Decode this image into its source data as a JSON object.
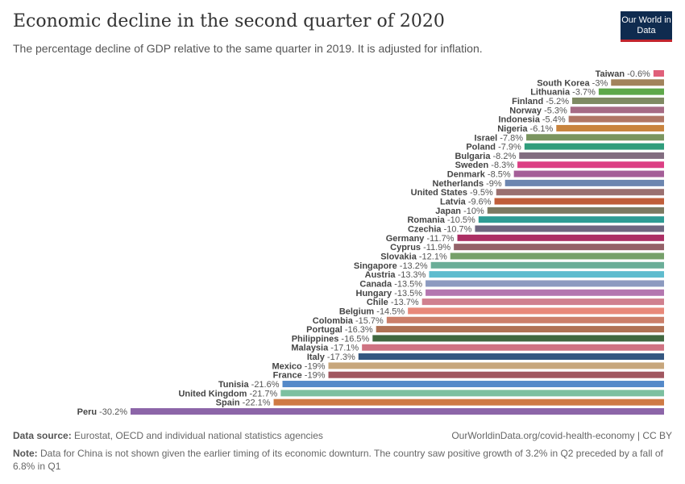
{
  "header": {
    "title": "Economic decline in the second quarter of 2020",
    "subtitle": "The percentage decline of GDP relative to the same quarter in 2019. It is adjusted for inflation.",
    "logo": "Our World in Data"
  },
  "chart_data": {
    "type": "bar",
    "orientation": "horizontal",
    "unit": "%",
    "xlim": [
      -30.2,
      0
    ],
    "grid": false,
    "categories": [
      "Taiwan",
      "South Korea",
      "Lithuania",
      "Finland",
      "Norway",
      "Indonesia",
      "Nigeria",
      "Israel",
      "Poland",
      "Bulgaria",
      "Sweden",
      "Denmark",
      "Netherlands",
      "United States",
      "Latvia",
      "Japan",
      "Romania",
      "Czechia",
      "Germany",
      "Cyprus",
      "Slovakia",
      "Singapore",
      "Austria",
      "Canada",
      "Hungary",
      "Chile",
      "Belgium",
      "Colombia",
      "Portugal",
      "Philippines",
      "Malaysia",
      "Italy",
      "Mexico",
      "France",
      "Tunisia",
      "United Kingdom",
      "Spain",
      "Peru"
    ],
    "values": [
      -0.6,
      -3,
      -3.7,
      -5.2,
      -5.3,
      -5.4,
      -6.1,
      -7.8,
      -7.9,
      -8.2,
      -8.3,
      -8.5,
      -9,
      -9.5,
      -9.6,
      -10,
      -10.5,
      -10.7,
      -11.7,
      -11.9,
      -12.1,
      -13.2,
      -13.3,
      -13.5,
      -13.5,
      -13.7,
      -14.5,
      -15.7,
      -16.3,
      -16.5,
      -17.1,
      -17.3,
      -19,
      -19,
      -21.6,
      -21.7,
      -22.1,
      -30.2
    ],
    "colors": [
      "#e0607a",
      "#a2835c",
      "#5ea84a",
      "#7f8a63",
      "#a66b85",
      "#b07665",
      "#c9843e",
      "#7b9560",
      "#2f9d7c",
      "#826d80",
      "#dc3f84",
      "#a45e98",
      "#6c86b0",
      "#9a7070",
      "#c05e3a",
      "#7c7a62",
      "#2e9c94",
      "#6e6680",
      "#ac2e64",
      "#946168",
      "#76a06a",
      "#6bae98",
      "#5fbcce",
      "#8c9ac0",
      "#b477b0",
      "#d0808f",
      "#e8897a",
      "#cc7f6a",
      "#b07255",
      "#416840",
      "#cf7382",
      "#345780",
      "#c7a67c",
      "#a15760",
      "#5489c9",
      "#7cc0a0",
      "#cf7a44",
      "#8c65a8"
    ]
  },
  "footer": {
    "source_label": "Data source:",
    "source": "Eurostat, OECD and individual national statistics agencies",
    "url": "OurWorldinData.org/covid-health-economy | CC BY",
    "note_label": "Note:",
    "note": "Data for China is not shown given the earlier timing of its economic downturn. The country saw positive growth of 3.2% in Q2 preceded by a fall of 6.8% in Q1"
  }
}
